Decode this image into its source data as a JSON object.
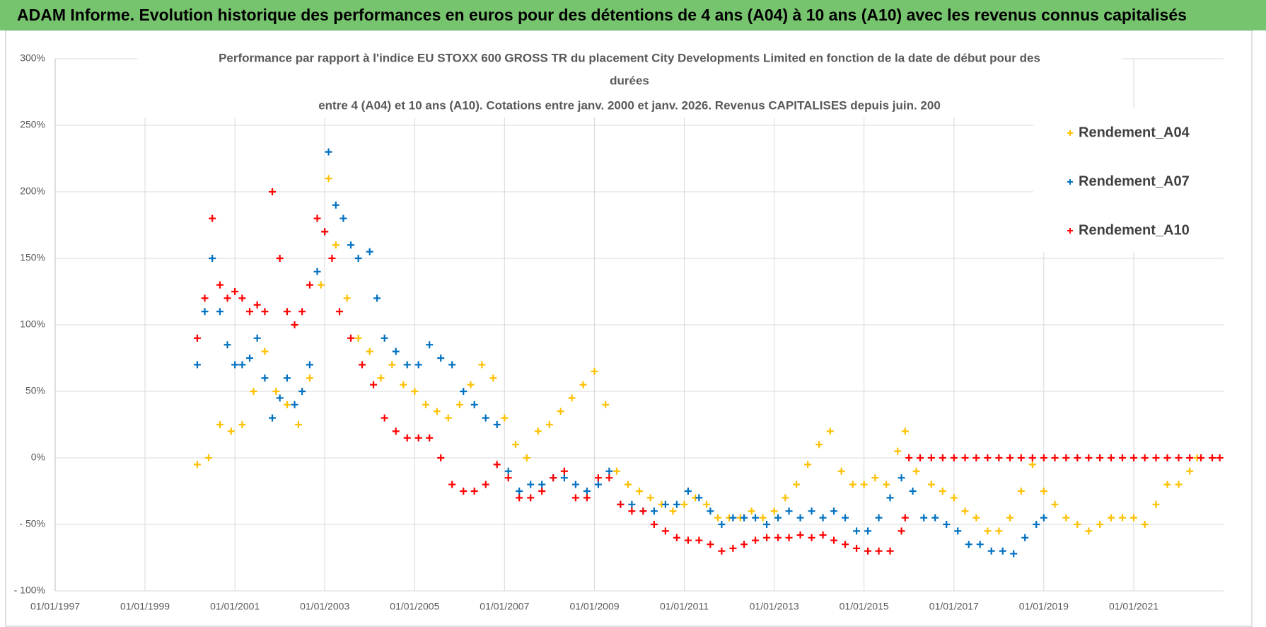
{
  "chart_data": {
    "type": "scatter",
    "banner": "ADAM Informe. Evolution historique des performances en euros pour des détentions de 4 ans (A04) à 10 ans (A10) avec les revenus connus capitalisés",
    "title": [
      "Performance par rapport à l'indice EU STOXX 600 GROSS TR  du placement City Developments Limited en fonction de la date de début pour des",
      "durées",
      "entre 4 (A04) et 10 ans (A10). Cotations entre janv. 2000 et janv. 2026. Revenus CAPITALISES depuis juin. 200"
    ],
    "xlim": [
      "1997-01-01",
      "2023-01-01"
    ],
    "xticks": [
      {
        "value": "1997-01-01",
        "label": "01/01/1997"
      },
      {
        "value": "1999-01-01",
        "label": "01/01/1999"
      },
      {
        "value": "2001-01-01",
        "label": "01/01/2001"
      },
      {
        "value": "2003-01-01",
        "label": "01/01/2003"
      },
      {
        "value": "2005-01-01",
        "label": "01/01/2005"
      },
      {
        "value": "2007-01-01",
        "label": "01/01/2007"
      },
      {
        "value": "2009-01-01",
        "label": "01/01/2009"
      },
      {
        "value": "2011-01-01",
        "label": "01/01/2011"
      },
      {
        "value": "2013-01-01",
        "label": "01/01/2013"
      },
      {
        "value": "2015-01-01",
        "label": "01/01/2015"
      },
      {
        "value": "2017-01-01",
        "label": "01/01/2017"
      },
      {
        "value": "2019-01-01",
        "label": "01/01/2019"
      },
      {
        "value": "2021-01-01",
        "label": "01/01/2021"
      }
    ],
    "ylim": [
      -100,
      300
    ],
    "yticks": [
      {
        "value": -100,
        "label": "- 100%"
      },
      {
        "value": -50,
        "label": "- 50%"
      },
      {
        "value": 0,
        "label": "0%"
      },
      {
        "value": 50,
        "label": "50%"
      },
      {
        "value": 100,
        "label": "100%"
      },
      {
        "value": 150,
        "label": "150%"
      },
      {
        "value": 200,
        "label": "200%"
      },
      {
        "value": 250,
        "label": "250%"
      },
      {
        "value": 300,
        "label": "300%"
      }
    ],
    "grid": true,
    "legend": "upper right",
    "series": [
      {
        "name": "Rendement_A04",
        "color": "#FFC000",
        "x": [
          "2000-03-01",
          "2000-06-01",
          "2000-09-01",
          "2000-12-01",
          "2001-03-01",
          "2001-06-01",
          "2001-09-01",
          "2001-12-01",
          "2002-03-01",
          "2002-06-01",
          "2002-09-01",
          "2002-12-01",
          "2003-02-01",
          "2003-04-01",
          "2003-07-01",
          "2003-10-01",
          "2004-01-01",
          "2004-04-01",
          "2004-07-01",
          "2004-10-01",
          "2005-01-01",
          "2005-04-01",
          "2005-07-01",
          "2005-10-01",
          "2006-01-01",
          "2006-04-01",
          "2006-07-01",
          "2006-10-01",
          "2007-01-01",
          "2007-04-01",
          "2007-07-01",
          "2007-10-01",
          "2008-01-01",
          "2008-04-01",
          "2008-07-01",
          "2008-10-01",
          "2009-01-01",
          "2009-04-01",
          "2009-07-01",
          "2009-10-01",
          "2010-01-01",
          "2010-04-01",
          "2010-07-01",
          "2010-10-01",
          "2011-01-01",
          "2011-04-01",
          "2011-07-01",
          "2011-10-01",
          "2012-01-01",
          "2012-04-01",
          "2012-07-01",
          "2012-10-01",
          "2013-01-01",
          "2013-04-01",
          "2013-07-01",
          "2013-10-01",
          "2014-01-01",
          "2014-04-01",
          "2014-07-01",
          "2014-10-01",
          "2015-01-01",
          "2015-04-01",
          "2015-07-01",
          "2015-10-01",
          "2015-12-01",
          "2016-03-01",
          "2016-07-01",
          "2016-10-01",
          "2017-01-01",
          "2017-04-01",
          "2017-07-01",
          "2017-10-01",
          "2018-01-01",
          "2018-04-01",
          "2018-07-01",
          "2018-10-01",
          "2019-01-01",
          "2019-04-01",
          "2019-07-01",
          "2019-10-01",
          "2020-01-01",
          "2020-04-01",
          "2020-07-01",
          "2020-10-01",
          "2021-01-01",
          "2021-04-01",
          "2021-07-01",
          "2021-10-01",
          "2022-01-01",
          "2022-04-01",
          "2022-06-01"
        ],
        "values": [
          -5,
          0,
          25,
          20,
          25,
          50,
          80,
          50,
          40,
          25,
          60,
          130,
          210,
          160,
          120,
          90,
          80,
          60,
          70,
          55,
          50,
          40,
          35,
          30,
          40,
          55,
          70,
          60,
          30,
          10,
          0,
          20,
          25,
          35,
          45,
          55,
          65,
          40,
          -10,
          -20,
          -25,
          -30,
          -35,
          -40,
          -35,
          -30,
          -35,
          -45,
          -45,
          -45,
          -40,
          -45,
          -40,
          -30,
          -20,
          -5,
          10,
          20,
          -10,
          -20,
          -20,
          -15,
          -20,
          5,
          20,
          -10,
          -20,
          -25,
          -30,
          -40,
          -45,
          -55,
          -55,
          -45,
          -25,
          -5,
          -25,
          -35,
          -45,
          -50,
          -55,
          -50,
          -45,
          -45,
          -45,
          -50,
          -35,
          -20,
          -20,
          -10,
          0
        ]
      },
      {
        "name": "Rendement_A07",
        "color": "#0070C0",
        "x": [
          "2000-03-01",
          "2000-05-01",
          "2000-07-01",
          "2000-09-01",
          "2000-11-01",
          "2001-01-01",
          "2001-03-01",
          "2001-05-01",
          "2001-07-01",
          "2001-09-01",
          "2001-11-01",
          "2002-01-01",
          "2002-03-01",
          "2002-05-01",
          "2002-07-01",
          "2002-09-01",
          "2002-11-01",
          "2003-01-01",
          "2003-02-01",
          "2003-04-01",
          "2003-06-01",
          "2003-08-01",
          "2003-10-01",
          "2004-01-01",
          "2004-03-01",
          "2004-05-01",
          "2004-08-01",
          "2004-11-01",
          "2005-02-01",
          "2005-05-01",
          "2005-08-01",
          "2005-11-01",
          "2006-02-01",
          "2006-05-01",
          "2006-08-01",
          "2006-11-01",
          "2007-02-01",
          "2007-05-01",
          "2007-08-01",
          "2007-11-01",
          "2008-02-01",
          "2008-05-01",
          "2008-08-01",
          "2008-11-01",
          "2009-02-01",
          "2009-05-01",
          "2009-08-01",
          "2009-11-01",
          "2010-02-01",
          "2010-05-01",
          "2010-08-01",
          "2010-11-01",
          "2011-02-01",
          "2011-05-01",
          "2011-08-01",
          "2011-11-01",
          "2012-02-01",
          "2012-05-01",
          "2012-08-01",
          "2012-11-01",
          "2013-02-01",
          "2013-05-01",
          "2013-08-01",
          "2013-11-01",
          "2014-02-01",
          "2014-05-01",
          "2014-08-01",
          "2014-11-01",
          "2015-02-01",
          "2015-05-01",
          "2015-08-01",
          "2015-11-01",
          "2016-02-01",
          "2016-05-01",
          "2016-08-01",
          "2016-11-01",
          "2017-02-01",
          "2017-05-01",
          "2017-08-01",
          "2017-11-01",
          "2018-02-01",
          "2018-05-01",
          "2018-08-01",
          "2018-11-01",
          "2019-01-01"
        ],
        "values": [
          70,
          110,
          150,
          110,
          85,
          70,
          70,
          75,
          90,
          60,
          30,
          45,
          60,
          40,
          50,
          70,
          140,
          170,
          230,
          190,
          180,
          160,
          150,
          155,
          120,
          90,
          80,
          70,
          70,
          85,
          75,
          70,
          50,
          40,
          30,
          25,
          -10,
          -25,
          -20,
          -20,
          -15,
          -15,
          -20,
          -25,
          -20,
          -10,
          -35,
          -35,
          -40,
          -40,
          -35,
          -35,
          -25,
          -30,
          -40,
          -50,
          -45,
          -45,
          -45,
          -50,
          -45,
          -40,
          -45,
          -40,
          -45,
          -40,
          -45,
          -55,
          -55,
          -45,
          -30,
          -15,
          -25,
          -45,
          -45,
          -50,
          -55,
          -65,
          -65,
          -70,
          -70,
          -72,
          -60,
          -50,
          -45
        ]
      },
      {
        "name": "Rendement_A10",
        "color": "#FF0000",
        "x": [
          "2000-03-01",
          "2000-05-01",
          "2000-07-01",
          "2000-09-01",
          "2000-11-01",
          "2001-01-01",
          "2001-03-01",
          "2001-05-01",
          "2001-07-01",
          "2001-09-01",
          "2001-11-01",
          "2002-01-01",
          "2002-03-01",
          "2002-05-01",
          "2002-07-01",
          "2002-09-01",
          "2002-11-01",
          "2003-01-01",
          "2003-03-01",
          "2003-05-01",
          "2003-08-01",
          "2003-11-01",
          "2004-02-01",
          "2004-05-01",
          "2004-08-01",
          "2004-11-01",
          "2005-02-01",
          "2005-05-01",
          "2005-08-01",
          "2005-11-01",
          "2006-02-01",
          "2006-05-01",
          "2006-08-01",
          "2006-11-01",
          "2007-02-01",
          "2007-05-01",
          "2007-08-01",
          "2007-11-01",
          "2008-02-01",
          "2008-05-01",
          "2008-08-01",
          "2008-11-01",
          "2009-02-01",
          "2009-05-01",
          "2009-08-01",
          "2009-11-01",
          "2010-02-01",
          "2010-05-01",
          "2010-08-01",
          "2010-11-01",
          "2011-02-01",
          "2011-05-01",
          "2011-08-01",
          "2011-11-01",
          "2012-02-01",
          "2012-05-01",
          "2012-08-01",
          "2012-11-01",
          "2013-02-01",
          "2013-05-01",
          "2013-08-01",
          "2013-11-01",
          "2014-02-01",
          "2014-05-01",
          "2014-08-01",
          "2014-11-01",
          "2015-02-01",
          "2015-05-01",
          "2015-08-01",
          "2015-11-01",
          "2015-12-01",
          "2016-01-01",
          "2016-04-01",
          "2016-07-01",
          "2016-10-01",
          "2017-01-01",
          "2017-04-01",
          "2017-07-01",
          "2017-10-01",
          "2018-01-01",
          "2018-04-01",
          "2018-07-01",
          "2018-10-01",
          "2019-01-01",
          "2019-04-01",
          "2019-07-01",
          "2019-10-01",
          "2020-01-01",
          "2020-04-01",
          "2020-07-01",
          "2020-10-01",
          "2021-01-01",
          "2021-04-01",
          "2021-07-01",
          "2021-10-01",
          "2022-01-01",
          "2022-04-01",
          "2022-07-01",
          "2022-10-01",
          "2022-12-01"
        ],
        "values": [
          90,
          120,
          180,
          130,
          120,
          125,
          120,
          110,
          115,
          110,
          200,
          150,
          110,
          100,
          110,
          130,
          180,
          170,
          150,
          110,
          90,
          70,
          55,
          30,
          20,
          15,
          15,
          15,
          0,
          -20,
          -25,
          -25,
          -20,
          -5,
          -15,
          -30,
          -30,
          -25,
          -15,
          -10,
          -30,
          -30,
          -15,
          -15,
          -35,
          -40,
          -40,
          -50,
          -55,
          -60,
          -62,
          -62,
          -65,
          -70,
          -68,
          -65,
          -62,
          -60,
          -60,
          -60,
          -58,
          -60,
          -58,
          -62,
          -65,
          -68,
          -70,
          -70,
          -70,
          -55,
          -45,
          0,
          0,
          0,
          0,
          0,
          0,
          0,
          0,
          0,
          0,
          0,
          0,
          0,
          0,
          0,
          0,
          0,
          0,
          0,
          0,
          0,
          0,
          0,
          0,
          0,
          0,
          0,
          0,
          0
        ]
      }
    ]
  }
}
